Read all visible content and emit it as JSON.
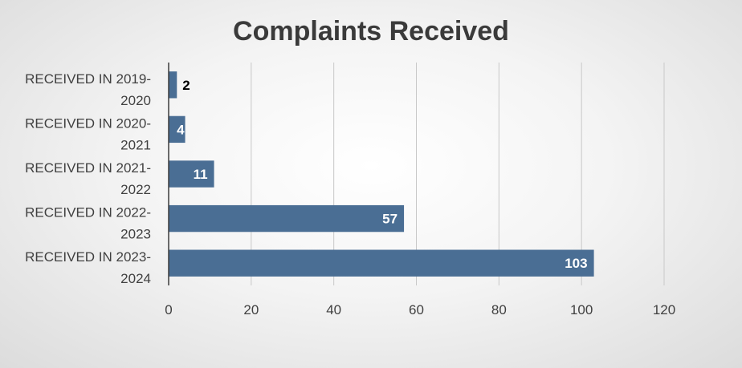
{
  "chart_data": {
    "type": "bar",
    "orientation": "horizontal",
    "title": "Complaints Received",
    "categories": [
      "RECEIVED IN 2019-2020",
      "RECEIVED IN 2020-2021",
      "RECEIVED IN 2021-2022",
      "RECEIVED IN 2022-2023",
      "RECEIVED IN 2023-2024"
    ],
    "category_lines": [
      [
        "RECEIVED IN 2019-",
        "2020"
      ],
      [
        "RECEIVED IN 2020-",
        "2021"
      ],
      [
        "RECEIVED IN 2021-",
        "2022"
      ],
      [
        "RECEIVED IN 2022-",
        "2023"
      ],
      [
        "RECEIVED IN 2023-",
        "2024"
      ]
    ],
    "values": [
      2,
      4,
      11,
      57,
      103
    ],
    "data_labels": [
      "2",
      "4",
      "11",
      "57",
      "103"
    ],
    "xticks": [
      "0",
      "20",
      "40",
      "60",
      "80",
      "100",
      "120"
    ],
    "xlim": [
      0,
      120
    ],
    "xlabel": "",
    "ylabel": "",
    "grid": "vertical",
    "legend": "none",
    "bar_color": "#4a6e94"
  }
}
